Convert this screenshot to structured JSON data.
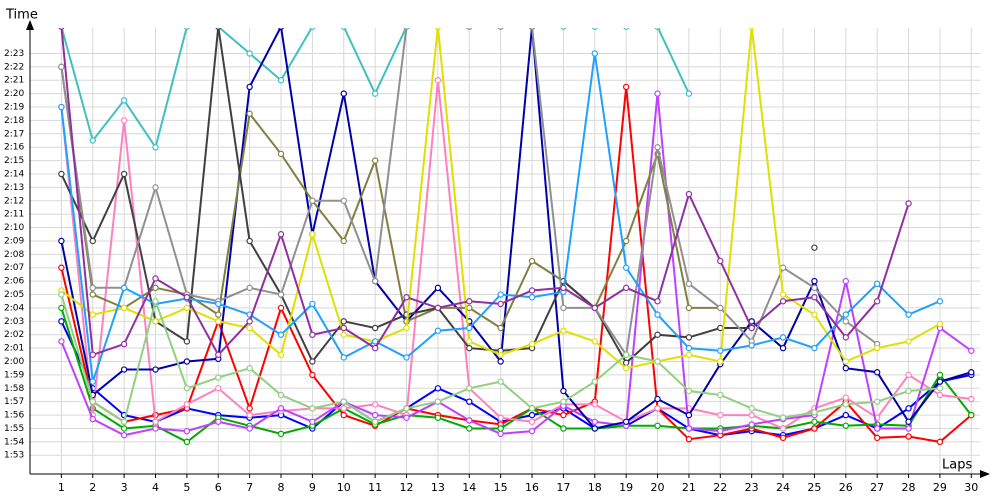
{
  "chart_data": {
    "type": "line",
    "ylabel": "Time",
    "xlabel": "Laps",
    "x": [
      1,
      2,
      3,
      4,
      5,
      6,
      7,
      8,
      9,
      10,
      11,
      12,
      13,
      14,
      15,
      16,
      17,
      18,
      19,
      20,
      21,
      22,
      23,
      24,
      25,
      26,
      27,
      28,
      29,
      30
    ],
    "xlim": [
      0,
      30.5
    ],
    "xticks": [
      1,
      2,
      3,
      4,
      5,
      6,
      7,
      8,
      9,
      10,
      11,
      12,
      13,
      14,
      15,
      16,
      17,
      18,
      19,
      20,
      21,
      22,
      23,
      24,
      25,
      26,
      27,
      28,
      29,
      30
    ],
    "ylim": [
      111.6,
      144.9
    ],
    "yticks": [
      {
        "value": 113,
        "label": "1:53"
      },
      {
        "value": 114,
        "label": "1:54"
      },
      {
        "value": 115,
        "label": "1:55"
      },
      {
        "value": 116,
        "label": "1:56"
      },
      {
        "value": 117,
        "label": "1:57"
      },
      {
        "value": 118,
        "label": "1:58"
      },
      {
        "value": 119,
        "label": "1:59"
      },
      {
        "value": 120,
        "label": "2:00"
      },
      {
        "value": 121,
        "label": "2:01"
      },
      {
        "value": 122,
        "label": "2:02"
      },
      {
        "value": 123,
        "label": "2:03"
      },
      {
        "value": 124,
        "label": "2:04"
      },
      {
        "value": 125,
        "label": "2:05"
      },
      {
        "value": 126,
        "label": "2:06"
      },
      {
        "value": 127,
        "label": "2:07"
      },
      {
        "value": 128,
        "label": "2:08"
      },
      {
        "value": 129,
        "label": "2:09"
      },
      {
        "value": 130,
        "label": "2:10"
      },
      {
        "value": 131,
        "label": "2:11"
      },
      {
        "value": 132,
        "label": "2:12"
      },
      {
        "value": 133,
        "label": "2:13"
      },
      {
        "value": 134,
        "label": "2:14"
      },
      {
        "value": 135,
        "label": "2:15"
      },
      {
        "value": 136,
        "label": "2:16"
      },
      {
        "value": 137,
        "label": "2:17"
      },
      {
        "value": 138,
        "label": "2:18"
      },
      {
        "value": 139,
        "label": "2:19"
      },
      {
        "value": 140,
        "label": "2:20"
      },
      {
        "value": 141,
        "label": "2:21"
      },
      {
        "value": 142,
        "label": "2:22"
      },
      {
        "value": 143,
        "label": "2:23"
      }
    ],
    "grid": true,
    "series": [
      {
        "color": "#0000ff",
        "values": [
          123,
          118,
          116,
          115.5,
          116.5,
          116,
          115.8,
          116,
          115,
          117,
          115.5,
          116.5,
          118,
          117,
          115.5,
          116,
          116.5,
          115,
          115.2,
          116.5,
          115,
          114.5,
          114.8,
          114.5,
          115,
          116,
          115,
          116.5,
          118.5,
          119
        ]
      },
      {
        "color": "#ff0000",
        "values": [
          127,
          117,
          115.5,
          116,
          116.5,
          123,
          116.5,
          124,
          119,
          116,
          115.2,
          116.5,
          116,
          115.6,
          115.3,
          116.5,
          116,
          117,
          140.5,
          116.5,
          114.2,
          114.5,
          115,
          114.3,
          115,
          117,
          114.3,
          114.4,
          114,
          116
        ]
      },
      {
        "color": "#00aa00",
        "values": [
          124,
          116.5,
          115,
          115.2,
          114,
          115.8,
          115.2,
          114.6,
          115.2,
          116.5,
          115.3,
          116,
          115.8,
          115,
          115,
          116.5,
          115,
          115,
          115.2,
          115.2,
          115,
          115,
          115.2,
          115,
          115.5,
          115.2,
          115.3,
          115.2,
          119,
          116
        ]
      },
      {
        "color": "#ff80c0",
        "values": [
          139,
          116,
          138,
          115.5,
          116.8,
          118,
          116,
          116.3,
          116.5,
          116.5,
          116.8,
          116,
          141,
          118,
          115.8,
          115.5,
          116.8,
          116.8,
          115.5,
          116.5,
          116.5,
          116,
          116,
          115,
          116.5,
          117.3,
          115.8,
          119,
          117.5,
          117.2
        ]
      },
      {
        "color": "#c040ff",
        "values": [
          121.5,
          115.7,
          114.5,
          115,
          114.8,
          115.5,
          115,
          116.5,
          115.5,
          117,
          116,
          115.8,
          117,
          115.6,
          114.6,
          114.8,
          116.7,
          115.5,
          115.2,
          140,
          115,
          114.8,
          115.3,
          115.7,
          116,
          126,
          115,
          115,
          122.5,
          120.8
        ]
      },
      {
        "color": "#40c0c0",
        "values": [
          145,
          136.5,
          139.5,
          136,
          145,
          145,
          143,
          141,
          145,
          145,
          140,
          145,
          145,
          145,
          145,
          145,
          145,
          145,
          145,
          145,
          140,
          null,
          null,
          null,
          null,
          null,
          null,
          null,
          null,
          null
        ]
      },
      {
        "color": "#0000aa",
        "values": [
          129,
          117.5,
          119.4,
          119.4,
          120,
          120.2,
          140.5,
          145,
          129.5,
          140,
          126,
          123,
          125.5,
          123,
          120,
          145,
          117.8,
          115,
          115.5,
          117.2,
          116,
          119.8,
          123,
          121,
          126,
          119.5,
          119.2,
          115.5,
          118.5,
          119.2
        ]
      },
      {
        "color": "#808040",
        "values": [
          142,
          125,
          124,
          125.5,
          125,
          123.5,
          138.5,
          135.5,
          132,
          129,
          135,
          123,
          124,
          124,
          122.5,
          127.5,
          126,
          124,
          129,
          135.5,
          124,
          124,
          null,
          null,
          null,
          null,
          null,
          null,
          null,
          null
        ]
      },
      {
        "color": "#404040",
        "values": [
          134,
          129,
          134,
          123,
          121.5,
          145,
          129,
          125,
          120,
          123,
          122.5,
          123.5,
          124,
          121,
          120.8,
          121,
          126,
          124,
          119.9,
          122,
          121.8,
          122.5,
          122.5,
          null,
          128.5,
          null,
          null,
          null,
          null,
          null
        ]
      },
      {
        "color": "#909090",
        "values": [
          142,
          125.5,
          125.5,
          133,
          125,
          124.5,
          125.5,
          125,
          132,
          132,
          126,
          145,
          145,
          145,
          145,
          145,
          124,
          124,
          120.5,
          136,
          125.8,
          124,
          121.5,
          127,
          125.5,
          123,
          121.3,
          null,
          null,
          null
        ]
      },
      {
        "color": "#e0e000",
        "values": [
          125.3,
          123.5,
          124,
          123,
          124,
          123,
          122.5,
          120.5,
          129.5,
          122,
          121.5,
          122.5,
          145,
          121.5,
          120.5,
          121.3,
          122.3,
          121.5,
          119.5,
          120,
          120.5,
          120,
          145,
          125,
          123.5,
          120,
          121,
          121.5,
          122.8,
          null
        ]
      },
      {
        "color": "#20a0ff",
        "values": [
          139,
          118.5,
          125.5,
          124.3,
          124.7,
          124.3,
          123.5,
          122,
          124.3,
          120.3,
          121.5,
          120.3,
          122.3,
          122.5,
          125,
          124.8,
          125.2,
          143,
          127,
          123.5,
          121,
          120.8,
          121.2,
          121.8,
          121,
          123.5,
          125.8,
          123.5,
          124.5,
          null
        ]
      },
      {
        "color": "#90d080",
        "values": [
          125,
          117,
          115.5,
          124.5,
          118,
          118.8,
          119.5,
          117.5,
          116.5,
          117,
          115.5,
          116.5,
          117,
          118,
          118.5,
          116.5,
          117,
          118.5,
          120.5,
          120,
          117.8,
          117.5,
          116.5,
          115.8,
          116.2,
          116.8,
          117,
          117.8,
          118,
          null
        ]
      },
      {
        "color": "#9030a0",
        "values": [
          145,
          120.5,
          121.3,
          126.2,
          124.8,
          120.5,
          123,
          129.5,
          122,
          122.5,
          121,
          124.8,
          124,
          124.5,
          124.3,
          125.3,
          125.5,
          124,
          125.5,
          124.5,
          132.5,
          127.5,
          122.5,
          124.5,
          124.8,
          121.8,
          124.5,
          131.8,
          null,
          null
        ]
      }
    ]
  }
}
